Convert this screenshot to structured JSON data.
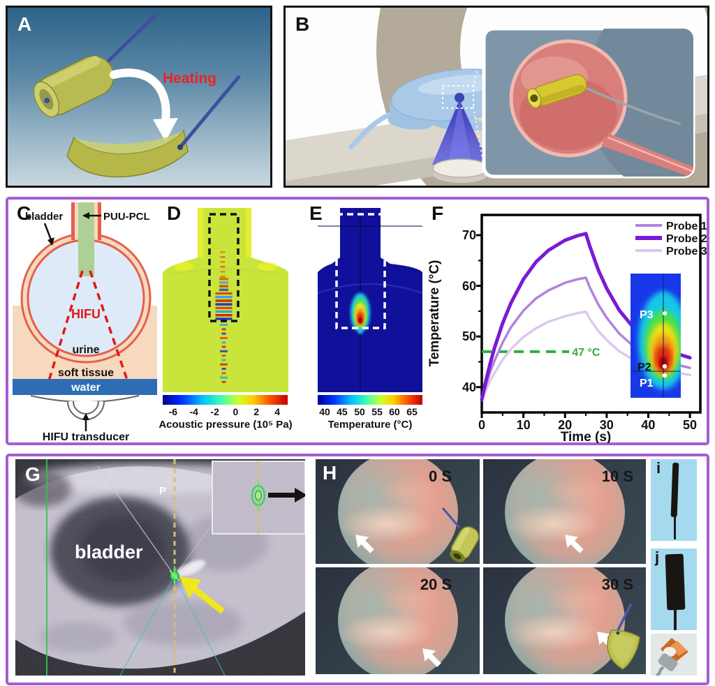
{
  "panelA": {
    "label": "A",
    "heating": "Heating"
  },
  "panelB": {
    "label": "B"
  },
  "panelC": {
    "label": "C",
    "bladder": "bladder",
    "device": "PUU-PCL",
    "hifu": "HIFU",
    "urine": "urine",
    "soft_tissue": "soft tissue",
    "water": "water",
    "transducer": "HIFU transducer"
  },
  "panelD": {
    "label": "D",
    "ticks": [
      "-6",
      "-4",
      "-2",
      "0",
      "2",
      "4"
    ],
    "caption": "Acoustic pressure (10⁵ Pa)"
  },
  "panelE": {
    "label": "E",
    "ticks": [
      "40",
      "45",
      "50",
      "55",
      "60",
      "65"
    ],
    "caption": "Temperature (°C)"
  },
  "panelF": {
    "label": "F",
    "inset": {
      "p3": "P3",
      "p2": "P2",
      "p1": "P1"
    }
  },
  "panelG": {
    "label": "G",
    "bladder": "bladder",
    "p": "P"
  },
  "panelH": {
    "label": "H",
    "times": [
      "0 S",
      "10 S",
      "20 S",
      "30 S"
    ]
  },
  "panelI": {
    "label": "i"
  },
  "panelJ": {
    "label": "j"
  },
  "chart_data": {
    "type": "line",
    "title": "",
    "xlabel": "Time (s)",
    "ylabel": "Temperature (°C)",
    "xlim": [
      0,
      52.5
    ],
    "ylim": [
      35,
      74
    ],
    "xticks": [
      0,
      10,
      20,
      30,
      40,
      50
    ],
    "yticks": [
      40,
      50,
      60,
      70
    ],
    "x_minor_step": 5,
    "y_minor_step": 5,
    "grid": false,
    "legend_position": "top-right",
    "threshold": {
      "value": 47,
      "x_start": 0,
      "x_end": 21,
      "label": "47 °C",
      "color": "#2fae3e"
    },
    "series": [
      {
        "name": "Probe 1",
        "color": "#b183de",
        "width": 3.5,
        "x": [
          0,
          1,
          2,
          3,
          5,
          7,
          10,
          13,
          16,
          20,
          23,
          25,
          26,
          28,
          30,
          33,
          36,
          40,
          45,
          50
        ],
        "y": [
          37.5,
          40.3,
          42.9,
          45.1,
          48.8,
          51.8,
          55.1,
          57.5,
          59.1,
          60.6,
          61.3,
          61.6,
          59.6,
          56.3,
          53.7,
          50.6,
          48.4,
          46.4,
          44.8,
          43.8
        ]
      },
      {
        "name": "Probe 2",
        "color": "#7a1bd3",
        "width": 5,
        "x": [
          0,
          1,
          2,
          3,
          5,
          7,
          10,
          13,
          16,
          20,
          23,
          25,
          26,
          28,
          30,
          33,
          36,
          40,
          45,
          50
        ],
        "y": [
          37.5,
          41.3,
          44.6,
          47.6,
          52.6,
          56.6,
          61.3,
          64.7,
          67.0,
          69.0,
          69.9,
          70.3,
          67.7,
          63.1,
          59.5,
          55.2,
          52.2,
          49.3,
          47.1,
          45.8
        ]
      },
      {
        "name": "Probe 3",
        "color": "#dcc8ef",
        "width": 3.5,
        "x": [
          0,
          1,
          2,
          3,
          5,
          7,
          10,
          13,
          16,
          20,
          23,
          25,
          26,
          28,
          30,
          33,
          36,
          40,
          45,
          50
        ],
        "y": [
          37.5,
          39.4,
          41.2,
          42.7,
          45.4,
          47.5,
          49.9,
          51.6,
          52.9,
          54.0,
          54.6,
          54.9,
          53.4,
          51.1,
          49.3,
          47.1,
          45.6,
          44.2,
          43.1,
          42.4
        ]
      }
    ]
  }
}
